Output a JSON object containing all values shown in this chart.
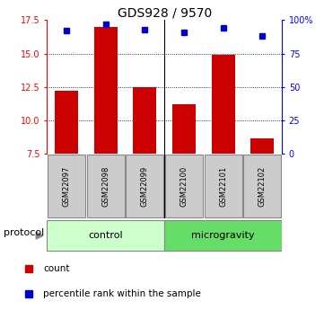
{
  "title": "GDS928 / 9570",
  "samples": [
    "GSM22097",
    "GSM22098",
    "GSM22099",
    "GSM22100",
    "GSM22101",
    "GSM22102"
  ],
  "bar_values": [
    12.2,
    17.0,
    12.5,
    11.2,
    14.9,
    8.6
  ],
  "percentile_values": [
    92,
    97,
    93,
    91,
    94,
    88
  ],
  "bar_color": "#cc0000",
  "dot_color": "#0000cc",
  "ylim_left": [
    7.5,
    17.5
  ],
  "yticks_left": [
    7.5,
    10.0,
    12.5,
    15.0,
    17.5
  ],
  "ylim_right": [
    0,
    100
  ],
  "yticks_right": [
    0,
    25,
    50,
    75,
    100
  ],
  "ytick_labels_right": [
    "0",
    "25",
    "50",
    "75",
    "100%"
  ],
  "grid_lines": [
    10.0,
    12.5,
    15.0
  ],
  "bar_bottom": 7.5,
  "bar_width": 0.6,
  "control_color": "#ccffcc",
  "microgravity_color": "#66dd66",
  "sample_box_color": "#cccccc",
  "legend_count_label": "count",
  "legend_percentile_label": "percentile rank within the sample",
  "title_fontsize": 10,
  "ytick_fontsize": 7,
  "sample_fontsize": 6,
  "protocol_fontsize": 8,
  "group_fontsize": 8,
  "legend_fontsize": 7.5
}
